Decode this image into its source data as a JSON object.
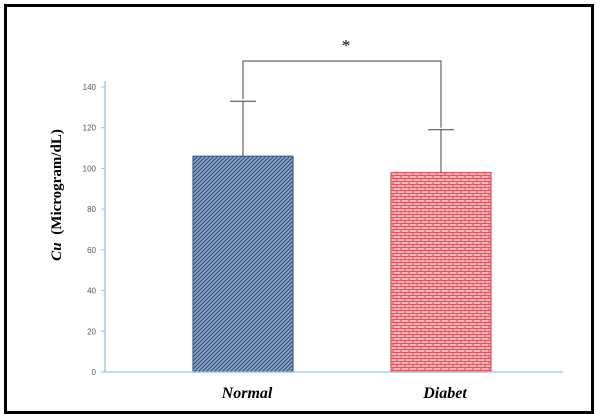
{
  "chart_data": {
    "type": "bar",
    "categories": [
      "Normal",
      "Diabet"
    ],
    "values": [
      106,
      98
    ],
    "error": [
      27,
      21
    ],
    "ylim": [
      0,
      140
    ],
    "yticks": [
      0,
      20,
      40,
      60,
      80,
      100,
      120,
      140
    ],
    "ylabel_symbol": "Cu",
    "ylabel_unit": "(Microgram/dL)",
    "significance": "*",
    "bar_colors": [
      "#3d5f8f",
      "#e0525c"
    ],
    "bar_patterns": [
      "woven",
      "brick"
    ],
    "axis_color": "#9cc3e0",
    "grid": false
  }
}
